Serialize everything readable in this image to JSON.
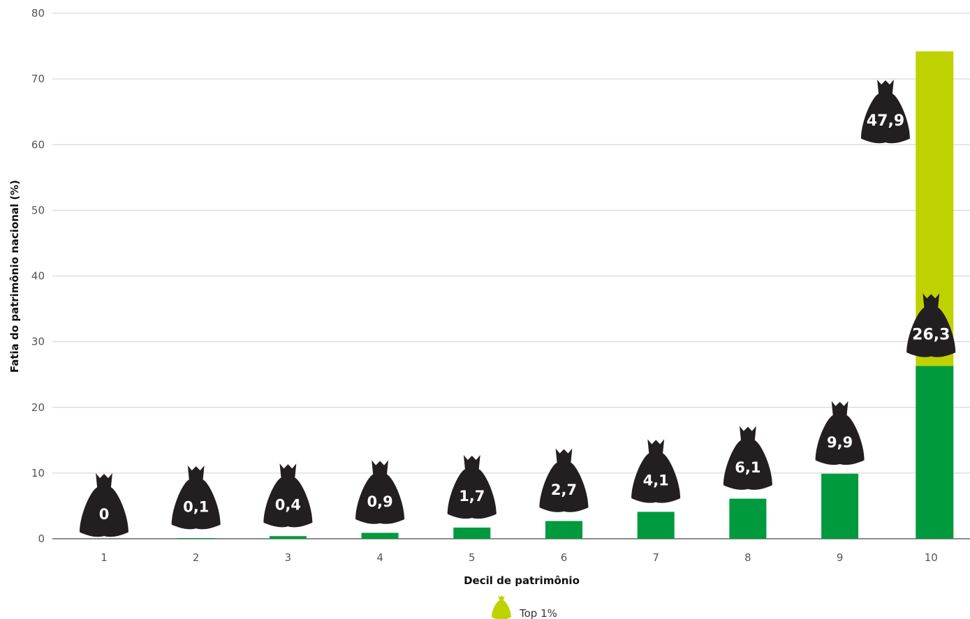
{
  "chart_data": {
    "type": "bar",
    "stacked": true,
    "xlabel": "Decil de patrimônio",
    "ylabel": "Fatia do patrimônio nacional (%)",
    "ylim": [
      0,
      80
    ],
    "yticks": [
      0,
      10,
      20,
      30,
      40,
      50,
      60,
      70,
      80
    ],
    "grid": true,
    "categories": [
      "1",
      "2",
      "3",
      "4",
      "5",
      "6",
      "7",
      "8",
      "9",
      "10"
    ],
    "bag_labels": [
      "0",
      "0,1",
      "0,4",
      "0,9",
      "1,7",
      "2,7",
      "4,1",
      "6,1",
      "9,9",
      "26,3"
    ],
    "top_bag_label": "47,9",
    "series": [
      {
        "values": [
          0,
          0.1,
          0.4,
          0.9,
          1.7,
          2.7,
          4.1,
          6.1,
          9.9,
          26.3
        ],
        "color": "#009a3e"
      },
      {
        "name": "Top 1%",
        "values": [
          0,
          0,
          0,
          0,
          0,
          0,
          0,
          0,
          0,
          47.9
        ],
        "color": "#bfd200"
      }
    ],
    "legend": {
      "position": "bottom-center",
      "label": "Top 1%",
      "color": "#bfd200"
    },
    "bag_color": "#231f20"
  }
}
